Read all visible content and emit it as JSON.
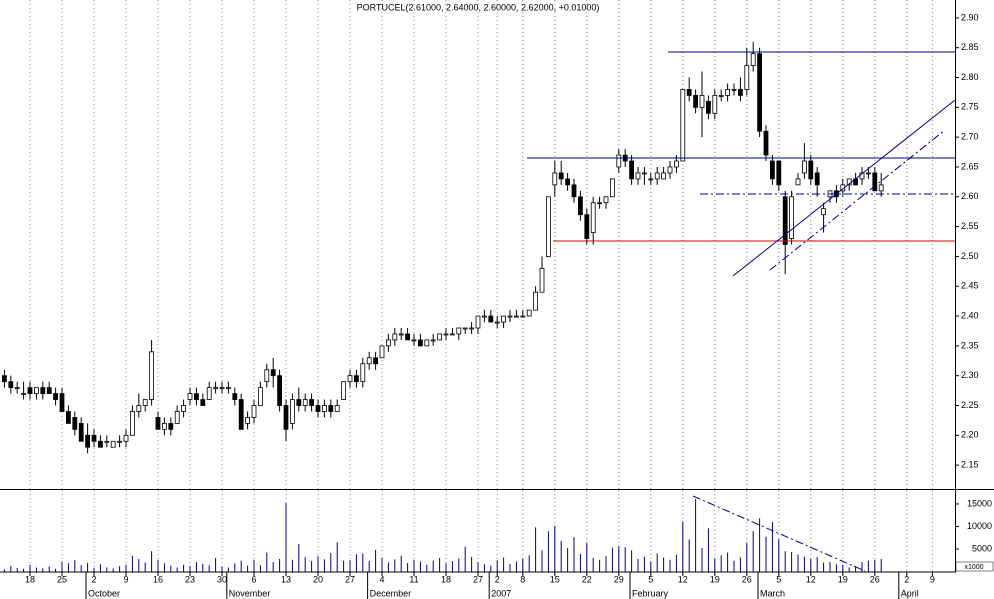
{
  "chart_data": {
    "type": "candlestick",
    "title": "PORTUCEL(2.61000, 2.64000, 2.60000, 2.62000, +0.01000)",
    "categories": [
      null,
      null,
      null,
      null,
      "18",
      null,
      null,
      null,
      null,
      "25",
      null,
      null,
      null,
      null,
      "2",
      null,
      null,
      null,
      null,
      "9",
      null,
      null,
      null,
      null,
      "16",
      null,
      null,
      null,
      null,
      "23",
      null,
      null,
      null,
      null,
      "30",
      null,
      null,
      null,
      null,
      "6",
      null,
      null,
      null,
      null,
      "13",
      null,
      null,
      null,
      null,
      "20",
      null,
      null,
      null,
      null,
      "27",
      null,
      null,
      null,
      null,
      "4",
      null,
      null,
      null,
      null,
      "11",
      null,
      null,
      null,
      null,
      "18",
      null,
      null,
      null,
      null,
      "27",
      null,
      null,
      "2",
      null,
      null,
      null,
      "8",
      null,
      null,
      null,
      null,
      "15",
      null,
      null,
      null,
      null,
      "22",
      null,
      null,
      null,
      null,
      "29",
      null,
      null,
      null,
      null,
      "5",
      null,
      null,
      null,
      null,
      "12",
      null,
      null,
      null,
      null,
      "19",
      null,
      null,
      null,
      null,
      "26",
      null,
      null,
      null,
      null,
      "5",
      null,
      null,
      null,
      null,
      "12",
      null,
      null,
      null,
      null,
      "19",
      null,
      null,
      null,
      null,
      "26",
      null,
      null,
      null,
      null,
      "2",
      null,
      null,
      null,
      "9",
      null,
      null
    ],
    "months": [
      null,
      null,
      null,
      null,
      null,
      null,
      null,
      null,
      null,
      null,
      null,
      null,
      null,
      null,
      "October",
      null,
      null,
      null,
      null,
      null,
      null,
      null,
      null,
      null,
      null,
      null,
      null,
      null,
      null,
      null,
      null,
      null,
      null,
      null,
      null,
      null,
      "November",
      null,
      null,
      null,
      null,
      null,
      null,
      null,
      null,
      null,
      null,
      null,
      null,
      null,
      null,
      null,
      null,
      null,
      null,
      null,
      null,
      null,
      "December",
      null,
      null,
      null,
      null,
      null,
      null,
      null,
      null,
      null,
      null,
      null,
      null,
      null,
      null,
      null,
      null,
      null,
      null,
      "2007",
      null,
      null,
      null,
      null,
      null,
      null,
      null,
      null,
      null,
      null,
      null,
      null,
      null,
      null,
      null,
      null,
      null,
      null,
      null,
      null,
      null,
      "February",
      null,
      null,
      null,
      null,
      null,
      null,
      null,
      null,
      null,
      null,
      null,
      null,
      null,
      null,
      null,
      null,
      null,
      null,
      null,
      "March",
      null,
      null,
      null,
      null,
      null,
      null,
      null,
      null,
      null,
      null,
      null,
      null,
      null,
      null,
      null,
      null,
      null,
      null,
      null,
      null,
      null,
      "April",
      null,
      null,
      null,
      null,
      null,
      null
    ],
    "open": [
      2.3,
      2.29,
      2.28,
      2.27,
      2.28,
      2.27,
      2.28,
      2.28,
      2.27,
      2.27,
      2.24,
      2.23,
      2.22,
      2.2,
      2.2,
      2.19,
      2.19,
      2.18,
      2.19,
      2.19,
      2.2,
      2.24,
      2.25,
      2.26,
      2.23,
      2.21,
      2.22,
      2.22,
      2.24,
      2.26,
      2.27,
      2.26,
      2.26,
      2.28,
      2.28,
      2.28,
      2.27,
      2.26,
      2.22,
      2.23,
      2.25,
      2.29,
      2.31,
      2.3,
      2.25,
      2.22,
      2.26,
      2.25,
      2.26,
      2.25,
      2.24,
      2.25,
      2.24,
      2.26,
      2.29,
      2.3,
      2.29,
      2.32,
      2.33,
      2.33,
      2.35,
      2.36,
      2.37,
      2.37,
      2.36,
      2.36,
      2.35,
      2.36,
      2.36,
      2.37,
      2.37,
      2.37,
      2.38,
      2.38,
      2.38,
      2.4,
      2.4,
      2.39,
      2.39,
      2.4,
      2.4,
      2.4,
      2.4,
      2.41,
      2.44,
      2.5,
      2.62,
      2.64,
      2.63,
      2.62,
      2.6,
      2.57,
      2.54,
      2.59,
      2.59,
      2.6,
      2.65,
      2.67,
      2.66,
      2.63,
      2.64,
      2.63,
      2.63,
      2.63,
      2.64,
      2.65,
      2.66,
      2.78,
      2.77,
      2.75,
      2.76,
      2.74,
      2.77,
      2.77,
      2.78,
      2.78,
      2.78,
      2.82,
      2.84,
      2.71,
      2.66,
      2.66,
      2.6,
      2.53,
      2.62,
      2.64,
      2.66,
      2.64,
      2.57,
      2.6,
      2.61,
      2.61,
      2.62,
      2.63,
      2.63,
      2.64,
      2.64,
      2.61,
      null,
      null,
      null,
      null,
      null,
      null,
      null,
      null,
      null,
      null
    ],
    "high": [
      2.31,
      2.3,
      2.29,
      2.29,
      2.29,
      2.28,
      2.29,
      2.29,
      2.28,
      2.28,
      2.25,
      2.24,
      2.23,
      2.22,
      2.21,
      2.2,
      2.2,
      2.19,
      2.2,
      2.21,
      2.25,
      2.27,
      2.26,
      2.36,
      2.24,
      2.23,
      2.23,
      2.25,
      2.26,
      2.28,
      2.28,
      2.27,
      2.29,
      2.29,
      2.29,
      2.29,
      2.28,
      2.27,
      2.24,
      2.26,
      2.29,
      2.32,
      2.33,
      2.31,
      2.26,
      2.27,
      2.28,
      2.27,
      2.27,
      2.26,
      2.26,
      2.26,
      2.26,
      2.29,
      2.31,
      2.31,
      2.33,
      2.34,
      2.34,
      2.35,
      2.37,
      2.38,
      2.38,
      2.38,
      2.37,
      2.37,
      2.36,
      2.37,
      2.37,
      2.38,
      2.38,
      2.38,
      2.38,
      2.39,
      2.4,
      2.41,
      2.41,
      2.4,
      2.4,
      2.41,
      2.41,
      2.41,
      2.41,
      2.45,
      2.5,
      2.6,
      2.66,
      2.66,
      2.64,
      2.63,
      2.61,
      2.58,
      2.6,
      2.6,
      2.6,
      2.63,
      2.68,
      2.68,
      2.67,
      2.65,
      2.65,
      2.64,
      2.65,
      2.65,
      2.66,
      2.67,
      2.78,
      2.8,
      2.78,
      2.81,
      2.77,
      2.78,
      2.78,
      2.79,
      2.79,
      2.8,
      2.85,
      2.86,
      2.85,
      2.72,
      2.67,
      2.66,
      2.61,
      2.61,
      2.64,
      2.69,
      2.67,
      2.65,
      2.59,
      2.61,
      2.62,
      2.63,
      2.63,
      2.64,
      2.65,
      2.65,
      2.65,
      2.64,
      null,
      null,
      null,
      null,
      null,
      null,
      null,
      null,
      null,
      null
    ],
    "low": [
      2.28,
      2.27,
      2.27,
      2.26,
      2.26,
      2.26,
      2.26,
      2.27,
      2.25,
      2.24,
      2.22,
      2.2,
      2.19,
      2.17,
      2.18,
      2.18,
      2.18,
      2.18,
      2.18,
      2.18,
      2.2,
      2.23,
      2.24,
      2.25,
      2.21,
      2.2,
      2.2,
      2.22,
      2.23,
      2.25,
      2.25,
      2.25,
      2.26,
      2.27,
      2.27,
      2.27,
      2.25,
      2.21,
      2.21,
      2.22,
      2.25,
      2.28,
      2.28,
      2.24,
      2.19,
      2.21,
      2.24,
      2.24,
      2.24,
      2.23,
      2.23,
      2.23,
      2.24,
      2.26,
      2.28,
      2.28,
      2.28,
      2.31,
      2.31,
      2.33,
      2.34,
      2.35,
      2.36,
      2.36,
      2.35,
      2.35,
      2.35,
      2.35,
      2.36,
      2.36,
      2.37,
      2.36,
      2.37,
      2.37,
      2.37,
      2.39,
      2.39,
      2.38,
      2.38,
      2.39,
      2.4,
      2.4,
      2.4,
      2.41,
      2.44,
      2.5,
      2.6,
      2.62,
      2.61,
      2.59,
      2.56,
      2.52,
      2.52,
      2.58,
      2.58,
      2.6,
      2.64,
      2.65,
      2.62,
      2.62,
      2.62,
      2.62,
      2.62,
      2.63,
      2.63,
      2.64,
      2.66,
      2.76,
      2.74,
      2.7,
      2.73,
      2.73,
      2.76,
      2.76,
      2.77,
      2.76,
      2.77,
      2.81,
      2.7,
      2.66,
      2.62,
      2.61,
      2.47,
      2.52,
      2.62,
      2.63,
      2.62,
      2.6,
      2.54,
      2.59,
      2.59,
      2.6,
      2.61,
      2.62,
      2.62,
      2.63,
      2.61,
      2.6,
      null,
      null,
      null,
      null,
      null,
      null,
      null,
      null,
      null,
      null
    ],
    "close": [
      2.29,
      2.28,
      2.28,
      2.27,
      2.27,
      2.28,
      2.27,
      2.27,
      2.26,
      2.24,
      2.22,
      2.21,
      2.19,
      2.18,
      2.19,
      2.18,
      2.19,
      2.19,
      2.19,
      2.2,
      2.24,
      2.25,
      2.26,
      2.34,
      2.21,
      2.22,
      2.21,
      2.24,
      2.25,
      2.27,
      2.26,
      2.25,
      2.28,
      2.28,
      2.28,
      2.28,
      2.26,
      2.21,
      2.23,
      2.25,
      2.28,
      2.31,
      2.3,
      2.25,
      2.21,
      2.26,
      2.25,
      2.26,
      2.25,
      2.24,
      2.25,
      2.24,
      2.25,
      2.29,
      2.3,
      2.29,
      2.32,
      2.33,
      2.32,
      2.35,
      2.36,
      2.37,
      2.37,
      2.36,
      2.36,
      2.35,
      2.36,
      2.36,
      2.37,
      2.37,
      2.37,
      2.38,
      2.38,
      2.38,
      2.4,
      2.4,
      2.39,
      2.39,
      2.4,
      2.4,
      2.4,
      2.4,
      2.41,
      2.44,
      2.48,
      2.6,
      2.64,
      2.63,
      2.62,
      2.6,
      2.57,
      2.53,
      2.59,
      2.59,
      2.6,
      2.63,
      2.67,
      2.66,
      2.63,
      2.64,
      2.64,
      2.63,
      2.64,
      2.64,
      2.65,
      2.66,
      2.78,
      2.77,
      2.75,
      2.77,
      2.74,
      2.77,
      2.77,
      2.78,
      2.78,
      2.77,
      2.82,
      2.84,
      2.71,
      2.67,
      2.63,
      2.62,
      2.52,
      2.6,
      2.63,
      2.66,
      2.63,
      2.62,
      2.58,
      2.61,
      2.6,
      2.62,
      2.63,
      2.62,
      2.64,
      2.64,
      2.61,
      2.62,
      null,
      null,
      null,
      null,
      null,
      null,
      null,
      null,
      null,
      null
    ],
    "volume": [
      500,
      1200,
      800,
      600,
      1500,
      900,
      700,
      1100,
      600,
      2200,
      1800,
      2500,
      1400,
      1900,
      800,
      1600,
      900,
      700,
      1200,
      1500,
      3500,
      2800,
      2000,
      4500,
      2600,
      1800,
      1300,
      900,
      1500,
      1200,
      2100,
      1700,
      1400,
      3000,
      1100,
      900,
      1800,
      2400,
      1300,
      2600,
      1400,
      4200,
      2100,
      2800,
      15200,
      2600,
      6100,
      3200,
      2300,
      3400,
      2700,
      4100,
      6500,
      2400,
      2500,
      3800,
      4000,
      2300,
      4800,
      3100,
      2000,
      2700,
      3500,
      1900,
      2600,
      2200,
      1500,
      2400,
      3000,
      1800,
      2300,
      2900,
      5500,
      3200,
      2100,
      1600,
      1300,
      2500,
      3100,
      1700,
      2200,
      2800,
      3600,
      9800,
      4700,
      8900,
      10100,
      6800,
      5200,
      7600,
      3900,
      6300,
      3000,
      2600,
      3400,
      5300,
      5600,
      5400,
      4700,
      2800,
      3300,
      2200,
      4000,
      3100,
      2600,
      3700,
      11100,
      7100,
      16100,
      5200,
      9600,
      2900,
      3600,
      4200,
      2400,
      3100,
      6300,
      9000,
      11800,
      7700,
      11000,
      7200,
      4500,
      4300,
      3800,
      3300,
      2800,
      3200,
      2000,
      2100,
      1600,
      1500,
      900,
      1200,
      2100,
      2400,
      2600,
      2800,
      null,
      null,
      null,
      null,
      null,
      null,
      null,
      null,
      null,
      null
    ],
    "ylim": [
      2.11,
      2.93
    ],
    "yticks": [
      2.15,
      {
        "value": 2.2,
        "label": "2.20"
      },
      2.25,
      {
        "value": 2.3,
        "label": "2.30"
      },
      2.35,
      {
        "value": 2.4,
        "label": "2.40"
      },
      2.45,
      {
        "value": 2.5,
        "label": "2.50"
      },
      2.55,
      {
        "value": 2.6,
        "label": "2.60"
      },
      2.65,
      {
        "value": 2.7,
        "label": "2.70"
      },
      2.75,
      {
        "value": 2.8,
        "label": "2.80"
      },
      2.85,
      {
        "value": 2.9,
        "label": "2.90"
      }
    ],
    "y2lim": [
      0,
      18100
    ],
    "y2ticks": [
      5000,
      10000,
      15000
    ],
    "volume_note": "x1000",
    "up_color": "#ffffff",
    "down_color": "#000000",
    "volume_color": "#00008b",
    "grid": true
  }
}
